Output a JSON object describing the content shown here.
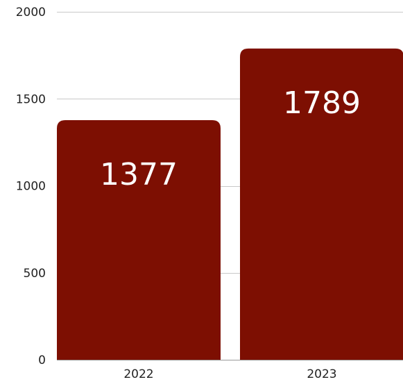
{
  "chart_data": {
    "type": "bar",
    "title": "",
    "xlabel": "",
    "ylabel": "",
    "categories": [
      "2022",
      "2023"
    ],
    "values": [
      1377,
      1789
    ],
    "data_labels": [
      "1377",
      "1789"
    ],
    "ylim": [
      0,
      2000
    ],
    "y_ticks": [
      0,
      500,
      1000,
      1500,
      2000
    ],
    "y_tick_labels": [
      "0",
      "500",
      "1000",
      "1500",
      "2000"
    ],
    "grid": true,
    "legend": "none",
    "colors": {
      "bar": "#7d0f02",
      "grid": "#c8c8c8",
      "label": "#ffffff"
    }
  }
}
